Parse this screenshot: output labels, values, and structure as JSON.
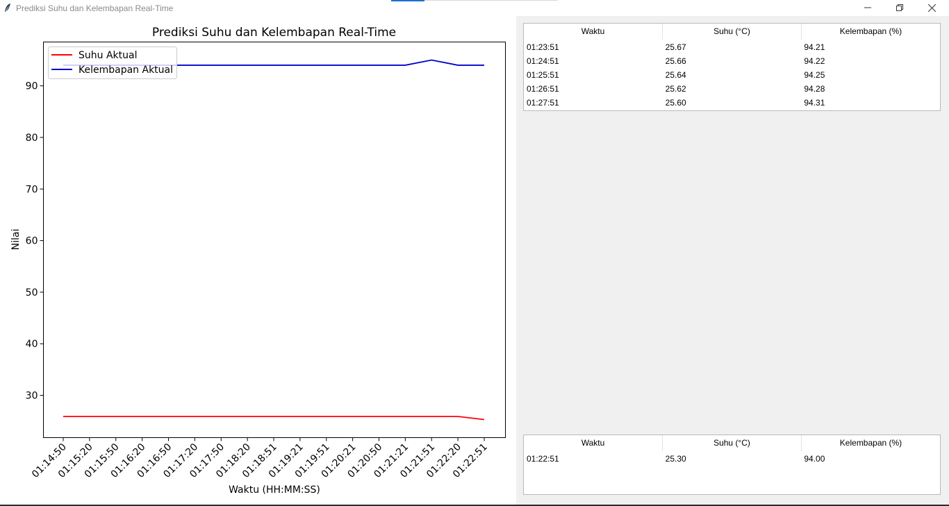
{
  "window": {
    "title": "Prediksi Suhu dan Kelembapan Real-Time",
    "icon": "feather-icon",
    "controls": [
      "minimize-icon",
      "restore-icon",
      "close-icon"
    ]
  },
  "chart_data": {
    "type": "line",
    "title": "Prediksi Suhu dan Kelembapan Real-Time",
    "xlabel": "Waktu (HH:MM:SS)",
    "ylabel": "Nilai",
    "categories": [
      "01:14:50",
      "01:15:20",
      "01:15:50",
      "01:16:20",
      "01:16:50",
      "01:17:20",
      "01:17:50",
      "01:18:20",
      "01:18:51",
      "01:19:21",
      "01:19:51",
      "01:20:21",
      "01:20:50",
      "01:21:21",
      "01:21:51",
      "01:22:20",
      "01:22:51"
    ],
    "series": [
      {
        "name": "Suhu Aktual",
        "color": "#ff0000",
        "values": [
          25.9,
          25.9,
          25.9,
          25.9,
          25.9,
          25.9,
          25.9,
          25.9,
          25.9,
          25.9,
          25.9,
          25.9,
          25.9,
          25.9,
          25.9,
          25.9,
          25.3
        ]
      },
      {
        "name": "Kelembapan Aktual",
        "color": "#0000cc",
        "values": [
          94,
          94,
          94,
          94,
          94,
          94,
          94,
          94,
          94,
          94,
          94,
          94,
          94,
          94,
          95,
          94,
          94
        ]
      }
    ],
    "yticks": [
      30,
      40,
      50,
      60,
      70,
      80,
      90
    ],
    "ylim": [
      21.8,
      98.5
    ],
    "legend": "top-left",
    "grid": false
  },
  "prediction_table": {
    "headers": [
      "Waktu",
      "Suhu (°C)",
      "Kelembapan (%)"
    ],
    "rows": [
      [
        "01:23:51",
        "25.67",
        "94.21"
      ],
      [
        "01:24:51",
        "25.66",
        "94.22"
      ],
      [
        "01:25:51",
        "25.64",
        "94.25"
      ],
      [
        "01:26:51",
        "25.62",
        "94.28"
      ],
      [
        "01:27:51",
        "25.60",
        "94.31"
      ]
    ]
  },
  "actual_table": {
    "headers": [
      "Waktu",
      "Suhu (°C)",
      "Kelembapan (%)"
    ],
    "rows": [
      [
        "01:22:51",
        "25.30",
        "94.00"
      ]
    ]
  }
}
